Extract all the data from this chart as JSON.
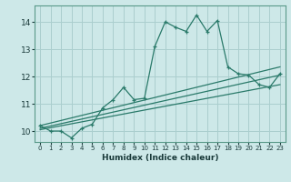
{
  "background_color": "#cde8e8",
  "grid_color": "#aacece",
  "line_color": "#2a7a6a",
  "xlabel": "Humidex (Indice chaleur)",
  "xlim": [
    -0.5,
    23.5
  ],
  "ylim": [
    9.6,
    14.6
  ],
  "yticks": [
    10,
    11,
    12,
    13,
    14
  ],
  "xticks": [
    0,
    1,
    2,
    3,
    4,
    5,
    6,
    7,
    8,
    9,
    10,
    11,
    12,
    13,
    14,
    15,
    16,
    17,
    18,
    19,
    20,
    21,
    22,
    23
  ],
  "line1_x": [
    0,
    1,
    2,
    3,
    4,
    5,
    6,
    7,
    8,
    9,
    10,
    11,
    12,
    13,
    14,
    15,
    16,
    17,
    18,
    19,
    20,
    21,
    22,
    23
  ],
  "line1_y": [
    10.2,
    10.0,
    10.0,
    9.75,
    10.1,
    10.25,
    10.85,
    11.15,
    11.6,
    11.15,
    11.2,
    13.1,
    14.0,
    13.8,
    13.65,
    14.25,
    13.65,
    14.05,
    12.35,
    12.1,
    12.05,
    11.7,
    11.6,
    12.1
  ],
  "line2_x": [
    0,
    23
  ],
  "line2_y": [
    10.05,
    11.7
  ],
  "line3_x": [
    0,
    23
  ],
  "line3_y": [
    10.1,
    12.05
  ],
  "line4_x": [
    0,
    23
  ],
  "line4_y": [
    10.2,
    12.35
  ]
}
